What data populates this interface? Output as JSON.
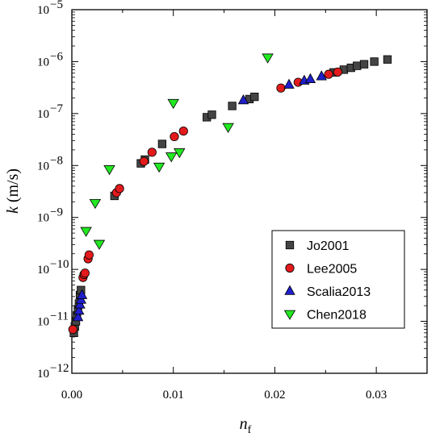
{
  "chart_data": {
    "type": "scatter",
    "xlabel": "n_f",
    "xlabel_main": "n",
    "xlabel_sub": "f",
    "ylabel_italic": "k",
    "ylabel_rest": " (m/s)",
    "xlim": [
      0,
      0.035
    ],
    "ylim": [
      1e-12,
      1e-05
    ],
    "yscale": "log",
    "x_ticks": [
      {
        "value": 0,
        "label": "0.00"
      },
      {
        "value": 0.01,
        "label": "0.01"
      },
      {
        "value": 0.02,
        "label": "0.02"
      },
      {
        "value": 0.03,
        "label": "0.03"
      }
    ],
    "y_ticks": [
      {
        "exp": -12,
        "base": "10",
        "power": "−12"
      },
      {
        "exp": -11,
        "base": "10",
        "power": "−11"
      },
      {
        "exp": -10,
        "base": "10",
        "power": "−10"
      },
      {
        "exp": -9,
        "base": "10",
        "power": "−9"
      },
      {
        "exp": -8,
        "base": "10",
        "power": "−8"
      },
      {
        "exp": -7,
        "base": "10",
        "power": "−7"
      },
      {
        "exp": -6,
        "base": "10",
        "power": "−6"
      },
      {
        "exp": -5,
        "base": "10",
        "power": "−5"
      }
    ],
    "grid": false,
    "legend_position": "bottom-right",
    "series": [
      {
        "name": "Jo2001",
        "marker": "square",
        "color": "#444444",
        "points": [
          [
            0.0002,
            6e-12
          ],
          [
            0.0003,
            8e-12
          ],
          [
            0.0004,
            1e-11
          ],
          [
            0.0005,
            1.3e-11
          ],
          [
            0.0006,
            1.7e-11
          ],
          [
            0.0007,
            2.2e-11
          ],
          [
            0.0008,
            3.2e-11
          ],
          [
            0.0009,
            4e-11
          ],
          [
            0.0042,
            2.6e-09
          ],
          [
            0.0068,
            1.1e-08
          ],
          [
            0.0072,
            1.3e-08
          ],
          [
            0.0089,
            2.6e-08
          ],
          [
            0.0133,
            8.5e-08
          ],
          [
            0.0138,
            9.5e-08
          ],
          [
            0.0158,
            1.4e-07
          ],
          [
            0.0175,
            1.9e-07
          ],
          [
            0.018,
            2.1e-07
          ],
          [
            0.0258,
            6.2e-07
          ],
          [
            0.0268,
            7e-07
          ],
          [
            0.0275,
            7.6e-07
          ],
          [
            0.0281,
            8.3e-07
          ],
          [
            0.0288,
            8.9e-07
          ],
          [
            0.0298,
            1e-06
          ],
          [
            0.0311,
            1.1e-06
          ]
        ]
      },
      {
        "name": "Lee2005",
        "marker": "circle",
        "color": "#e31a1c",
        "points": [
          [
            0.0001,
            7e-12
          ],
          [
            0.0011,
            7e-11
          ],
          [
            0.0012,
            8e-11
          ],
          [
            0.0013,
            8.5e-11
          ],
          [
            0.0016,
            1.6e-10
          ],
          [
            0.0017,
            1.9e-10
          ],
          [
            0.0044,
            3e-09
          ],
          [
            0.0047,
            3.6e-09
          ],
          [
            0.0071,
            1.2e-08
          ],
          [
            0.0079,
            1.8e-08
          ],
          [
            0.0101,
            3.6e-08
          ],
          [
            0.011,
            4.6e-08
          ],
          [
            0.0206,
            3.1e-07
          ],
          [
            0.0223,
            4e-07
          ],
          [
            0.0253,
            5.7e-07
          ],
          [
            0.0262,
            6.3e-07
          ]
        ]
      },
      {
        "name": "Scalia2013",
        "marker": "triangle-up",
        "color": "#1f1fcc",
        "points": [
          [
            0.0006,
            1.2e-11
          ],
          [
            0.0007,
            1.6e-11
          ],
          [
            0.0008,
            2.1e-11
          ],
          [
            0.0009,
            2.6e-11
          ],
          [
            0.001,
            3.2e-11
          ],
          [
            0.0169,
            1.8e-07
          ],
          [
            0.0214,
            3.6e-07
          ],
          [
            0.0229,
            4.3e-07
          ],
          [
            0.0235,
            4.6e-07
          ],
          [
            0.0246,
            5.2e-07
          ]
        ]
      },
      {
        "name": "Chen2018",
        "marker": "triangle-down",
        "color": "#22e822",
        "points": [
          [
            0.0014,
            5.5e-10
          ],
          [
            0.0023,
            1.9e-09
          ],
          [
            0.0027,
            3.1e-10
          ],
          [
            0.0037,
            8.5e-09
          ],
          [
            0.0086,
            9.5e-09
          ],
          [
            0.0098,
            1.5e-08
          ],
          [
            0.01,
            1.6e-07
          ],
          [
            0.0106,
            1.8e-08
          ],
          [
            0.0154,
            5.5e-08
          ],
          [
            0.0193,
            1.2e-06
          ]
        ]
      }
    ]
  }
}
